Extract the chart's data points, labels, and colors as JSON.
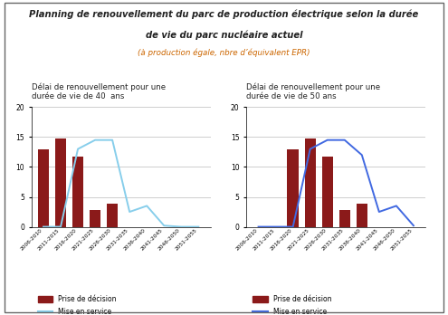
{
  "title_line1": "Planning de renouvellement du parc de production électrique selon la durée",
  "title_line2": "de vie du parc nucléaire actuel",
  "subtitle": "(à production égale, nbre d’équivalent EPR)",
  "chart1_title": "Délai de renouvellement pour une\ndurée de vie de 40  ans",
  "chart2_title": "Délai de renouvellement pour une\ndurée de vie de 50 ans",
  "categories": [
    "2006-2010",
    "2011-2015",
    "2016-2020",
    "2021-2025",
    "2026-2030",
    "2031-2035",
    "2036-2040",
    "2041-2045",
    "2046-2050",
    "2051-2055"
  ],
  "chart1_bars": [
    13,
    14.7,
    11.8,
    2.8,
    3.8,
    0,
    0,
    0,
    0,
    0
  ],
  "chart1_line": [
    0,
    0,
    13,
    14.5,
    14.5,
    2.5,
    3.5,
    0.2,
    0,
    0
  ],
  "chart2_bars": [
    0,
    0,
    13,
    14.7,
    11.8,
    2.8,
    3.8,
    0,
    0,
    0
  ],
  "chart2_line": [
    0,
    0,
    0,
    13,
    14.5,
    14.5,
    12,
    2.5,
    3.5,
    0.2
  ],
  "bar_color": "#8B1A1A",
  "line_color1": "#87CEEB",
  "line_color2": "#4169E1",
  "ylim": [
    0,
    20
  ],
  "yticks": [
    0,
    5,
    10,
    15,
    20
  ],
  "legend_bar_label": "Prise de décision",
  "legend_line_label": "Mise en service",
  "bg_color": "#FFFFFF",
  "title_color": "#222222",
  "subtitle_color": "#CC6600"
}
